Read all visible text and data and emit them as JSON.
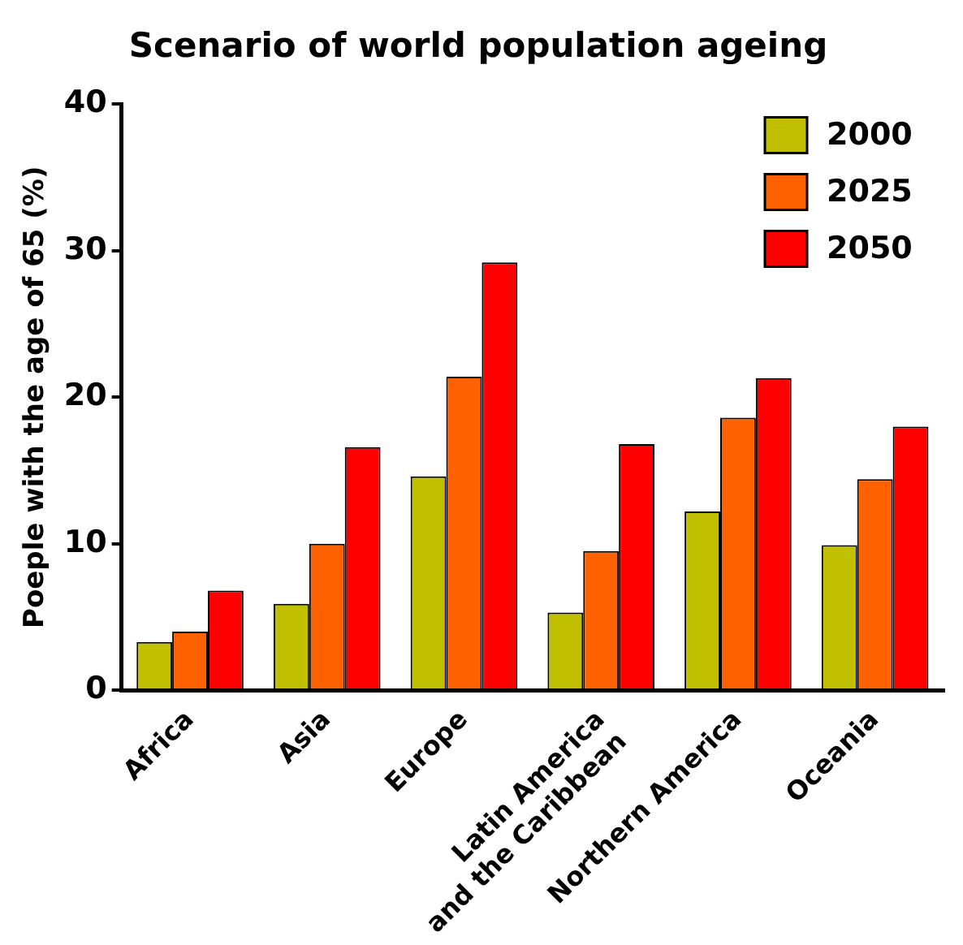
{
  "chart_data": {
    "type": "bar",
    "title": "Scenario of world population ageing",
    "ylabel": "Poeple with the age of 65 (%)",
    "categories": [
      "Africa",
      "Asia",
      "Europe",
      "Latin America\nand the Caribbean",
      "Northern America",
      "Oceania"
    ],
    "series": [
      {
        "name": "2000",
        "color": "#c0c000",
        "values": [
          3.3,
          5.9,
          14.6,
          5.3,
          12.2,
          9.9
        ]
      },
      {
        "name": "2025",
        "color": "#ff6000",
        "values": [
          4.0,
          10.0,
          21.4,
          9.5,
          18.6,
          14.4
        ]
      },
      {
        "name": "2050",
        "color": "#ff0000",
        "values": [
          6.8,
          16.6,
          29.2,
          16.8,
          21.3,
          18.0
        ]
      }
    ],
    "ylim": [
      0,
      40
    ],
    "yticks": [
      0,
      10,
      20,
      30,
      40
    ],
    "grid": false,
    "legend": "top right"
  }
}
